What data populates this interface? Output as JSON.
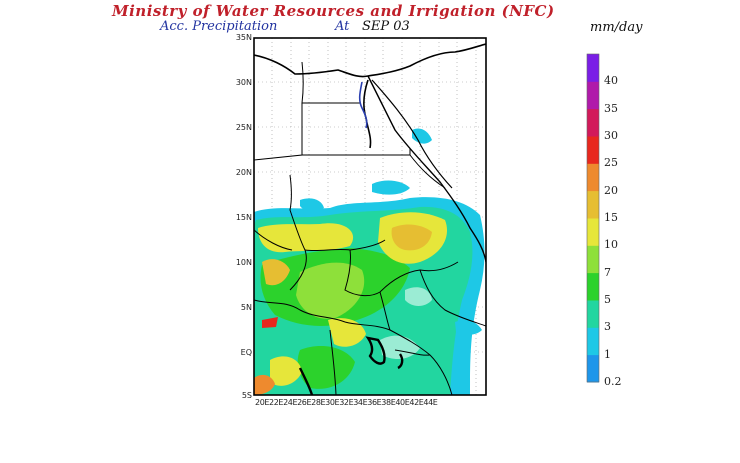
{
  "header": {
    "title": "Ministry of Water Resources and Irrigation (NFC)",
    "product": "Acc. Precipitation",
    "at_word": "At",
    "date": "SEP 03",
    "units": "mm/day"
  },
  "map": {
    "lat_labels": [
      "35N",
      "30N",
      "25N",
      "20N",
      "15N",
      "10N",
      "5N",
      "EQ",
      "5S"
    ],
    "lon_labels": "20E22E24E26E28E30E32E34E36E38E40E42E44E",
    "extent": {
      "lon": [
        20,
        45
      ],
      "lat": [
        -5,
        35
      ]
    }
  },
  "legend": {
    "levels": [
      {
        "label": "0.2",
        "color": "#1e96ea"
      },
      {
        "label": "1",
        "color": "#1ec8e6"
      },
      {
        "label": "3",
        "color": "#22d6a0"
      },
      {
        "label": "5",
        "color": "#2cd22c"
      },
      {
        "label": "7",
        "color": "#8ee03a"
      },
      {
        "label": "10",
        "color": "#e6e63a"
      },
      {
        "label": "15",
        "color": "#e6be32"
      },
      {
        "label": "20",
        "color": "#ee8a2e"
      },
      {
        "label": "25",
        "color": "#e8281e"
      },
      {
        "label": "30",
        "color": "#d21a5a"
      },
      {
        "label": "35",
        "color": "#b01aaa"
      },
      {
        "label": "40",
        "color": "#7a1ee6"
      }
    ]
  }
}
